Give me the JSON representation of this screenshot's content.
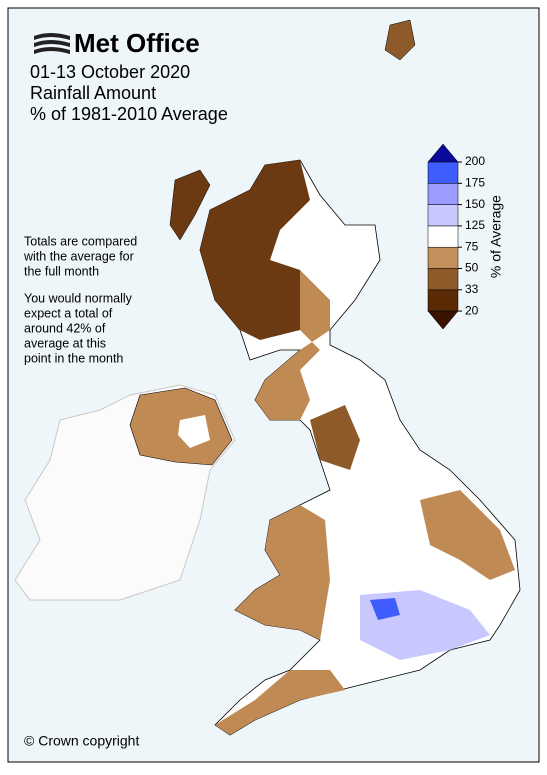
{
  "header": {
    "logo": "Met Office",
    "title_lines": [
      "01-13 October 2020",
      "Rainfall Amount",
      "% of 1981-2010 Average"
    ]
  },
  "notes": [
    [
      "Totals are compared",
      "with the average for",
      "the full month"
    ],
    [
      "You would normally",
      "expect a total of",
      "around 42% of",
      "average at this",
      "point in the month"
    ]
  ],
  "legend": {
    "label": "% of Average",
    "ticks": [
      20,
      33,
      50,
      75,
      125,
      150,
      175,
      200
    ],
    "under_color": "#3a1300",
    "colors": [
      "#5a2a05",
      "#8e5a2a",
      "#c4915c",
      "#ffffff",
      "#c8c8ff",
      "#9a9cff",
      "#3f5cff"
    ],
    "over_color": "#0a0a9a"
  },
  "copyright": "© Crown copyright"
}
